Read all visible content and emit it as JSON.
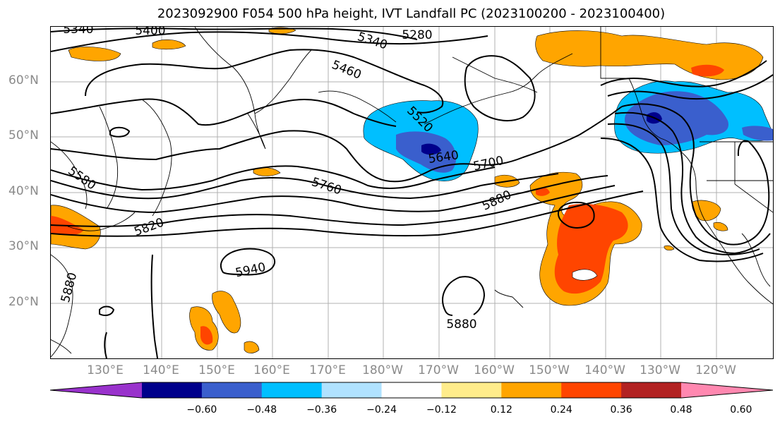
{
  "title": "2023092900 F054 500 hPa height, IVT Landfall PC (2023100200 - 2023100400)",
  "lat_labels": [
    "60°N",
    "50°N",
    "40°N",
    "30°N",
    "20°N"
  ],
  "lon_labels": [
    "130°E",
    "140°E",
    "150°E",
    "160°E",
    "170°E",
    "180°W",
    "170°W",
    "160°W",
    "150°W",
    "140°W",
    "130°W",
    "120°W"
  ],
  "contour_labels": [
    "5340",
    "5400",
    "5340",
    "5280",
    "5460",
    "5520",
    "5580",
    "5640",
    "5700",
    "5760",
    "5820",
    "5880",
    "5940",
    "5880",
    "5880"
  ],
  "colorbar": {
    "colors": [
      "#9932cc",
      "#00008b",
      "#3a5fcd",
      "#00bfff",
      "#b0e2ff",
      "#ffffff",
      "#ffec8b",
      "#ffa500",
      "#ff4500",
      "#b22222",
      "#ff88b0"
    ],
    "ticks": [
      "−0.60",
      "−0.48",
      "−0.36",
      "−0.24",
      "−0.12",
      "0.12",
      "0.24",
      "0.36",
      "0.48",
      "0.60"
    ]
  }
}
